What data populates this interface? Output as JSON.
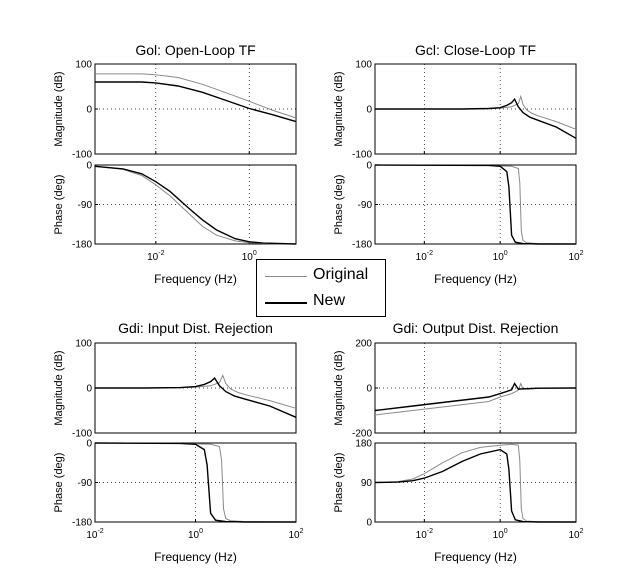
{
  "colors": {
    "original": "#8a8a8a",
    "new": "#000000",
    "axes": "#000000",
    "grid": "#000000",
    "background": "#ffffff"
  },
  "legend": {
    "placement": "center",
    "items": [
      {
        "label": "Original",
        "color": "#8a8a8a"
      },
      {
        "label": "New",
        "color": "#000000"
      }
    ]
  },
  "chart_data": [
    {
      "type": "line",
      "title": "Gol: Open-Loop TF",
      "xlabel": "Frequency  (Hz)",
      "x_scale": "log",
      "xlim": [
        0.0005,
        10
      ],
      "xticks": [
        {
          "value": 0.01,
          "base": "10",
          "exp": "-2"
        },
        {
          "value": 1,
          "base": "10",
          "exp": "0"
        }
      ],
      "magnitude": {
        "ylabel": "Magnitude (dB)",
        "ylim": [
          -100,
          100
        ],
        "yticks": [
          "100",
          "0",
          "-100"
        ],
        "ytick_values": [
          100,
          0,
          -100
        ],
        "series": [
          {
            "name": "Original",
            "x": [
              0.0005,
              0.005,
              0.01,
              0.03,
              0.1,
              0.3,
              1,
              3,
              10
            ],
            "y": [
              78,
              78,
              76,
              70,
              55,
              37,
              17,
              -2,
              -20
            ]
          },
          {
            "name": "New",
            "x": [
              0.0005,
              0.005,
              0.01,
              0.03,
              0.1,
              0.3,
              1,
              3,
              10
            ],
            "y": [
              60,
              60,
              58,
              51,
              37,
              20,
              1,
              -12,
              -28
            ]
          }
        ]
      },
      "phase": {
        "ylabel": "Phase (deg)",
        "ylim": [
          -180,
          0
        ],
        "yticks": [
          "0",
          "-90",
          "-180"
        ],
        "ytick_values": [
          0,
          -90,
          -180
        ],
        "series": [
          {
            "name": "Original",
            "x": [
              0.0005,
              0.002,
              0.005,
              0.01,
              0.02,
              0.05,
              0.1,
              0.2,
              0.5,
              1,
              2,
              10
            ],
            "y": [
              -3,
              -10,
              -24,
              -45,
              -70,
              -110,
              -140,
              -160,
              -173,
              -177,
              -179,
              -180
            ]
          },
          {
            "name": "New",
            "x": [
              0.0005,
              0.002,
              0.005,
              0.01,
              0.02,
              0.05,
              0.1,
              0.2,
              0.5,
              1,
              2,
              10
            ],
            "y": [
              -3,
              -9,
              -20,
              -38,
              -60,
              -98,
              -125,
              -148,
              -168,
              -175,
              -178,
              -180
            ]
          }
        ]
      }
    },
    {
      "type": "line",
      "title": "Gcl: Close-Loop TF",
      "xlabel": "Frequency  (Hz)",
      "x_scale": "log",
      "xlim": [
        0.0005,
        100
      ],
      "xticks": [
        {
          "value": 0.01,
          "base": "10",
          "exp": "-2"
        },
        {
          "value": 1,
          "base": "10",
          "exp": "0"
        },
        {
          "value": 100,
          "base": "10",
          "exp": "2"
        }
      ],
      "magnitude": {
        "ylabel": "Magnitude (dB)",
        "ylim": [
          -100,
          100
        ],
        "yticks": [
          "100",
          "0",
          "-100"
        ],
        "ytick_values": [
          100,
          0,
          -100
        ],
        "series": [
          {
            "name": "Original",
            "x": [
              0.0005,
              0.1,
              0.5,
              1,
              2,
              3,
              3.5,
              4,
              5,
              7,
              10,
              30,
              100
            ],
            "y": [
              0,
              0,
              1,
              2,
              5,
              12,
              28,
              10,
              -2,
              -10,
              -15,
              -28,
              -45
            ]
          },
          {
            "name": "New",
            "x": [
              0.0005,
              0.1,
              0.5,
              1,
              1.5,
              2,
              2.4,
              3,
              4,
              6,
              10,
              30,
              100
            ],
            "y": [
              0,
              0,
              1,
              3,
              8,
              14,
              22,
              5,
              -8,
              -18,
              -25,
              -40,
              -65
            ]
          }
        ]
      },
      "phase": {
        "ylabel": "Phase (deg)",
        "ylim": [
          -180,
          0
        ],
        "yticks": [
          "0",
          "-90",
          "-180"
        ],
        "ytick_values": [
          0,
          -90,
          -180
        ],
        "series": [
          {
            "name": "Original",
            "x": [
              0.0005,
              0.5,
              2,
              3,
              3.3,
              3.6,
              4,
              5,
              10,
              100
            ],
            "y": [
              0,
              -1,
              -3,
              -8,
              -40,
              -150,
              -172,
              -177,
              -179,
              -180
            ]
          },
          {
            "name": "New",
            "x": [
              0.0005,
              0.5,
              1,
              1.5,
              1.7,
              2,
              2.5,
              4,
              10,
              100
            ],
            "y": [
              0,
              -1,
              -3,
              -15,
              -50,
              -160,
              -176,
              -179,
              -180,
              -180
            ]
          }
        ]
      }
    },
    {
      "type": "line",
      "title": "Gdi: Input Dist. Rejection",
      "xlabel": "Frequency  (Hz)",
      "x_scale": "log",
      "xlim": [
        0.01,
        100
      ],
      "xticks": [
        {
          "value": 0.01,
          "base": "10",
          "exp": "-2"
        },
        {
          "value": 1,
          "base": "10",
          "exp": "0"
        },
        {
          "value": 100,
          "base": "10",
          "exp": "2"
        }
      ],
      "magnitude": {
        "ylabel": "Magnitude (dB)",
        "ylim": [
          -100,
          100
        ],
        "yticks": [
          "100",
          "0",
          "-100"
        ],
        "ytick_values": [
          100,
          0,
          -100
        ],
        "series": [
          {
            "name": "Original",
            "x": [
              0.01,
              0.1,
              0.5,
              1,
              2,
              3,
              3.5,
              4,
              5,
              7,
              10,
              30,
              100
            ],
            "y": [
              0,
              0,
              1,
              2,
              5,
              12,
              28,
              10,
              -2,
              -10,
              -15,
              -28,
              -45
            ]
          },
          {
            "name": "New",
            "x": [
              0.01,
              0.1,
              0.5,
              1,
              1.5,
              2,
              2.4,
              3,
              4,
              6,
              10,
              30,
              100
            ],
            "y": [
              0,
              0,
              1,
              3,
              8,
              14,
              22,
              5,
              -8,
              -18,
              -25,
              -40,
              -65
            ]
          }
        ]
      },
      "phase": {
        "ylabel": "Phase (deg)",
        "ylim": [
          -180,
          0
        ],
        "yticks": [
          "0",
          "-90",
          "-180"
        ],
        "ytick_values": [
          0,
          -90,
          -180
        ],
        "series": [
          {
            "name": "Original",
            "x": [
              0.01,
              0.5,
              2,
              3,
              3.3,
              3.6,
              4,
              5,
              10,
              100
            ],
            "y": [
              0,
              -1,
              -3,
              -8,
              -40,
              -150,
              -172,
              -177,
              -179,
              -180
            ]
          },
          {
            "name": "New",
            "x": [
              0.01,
              0.5,
              1,
              1.5,
              1.7,
              2,
              2.5,
              4,
              10,
              100
            ],
            "y": [
              0,
              -1,
              -3,
              -15,
              -50,
              -160,
              -176,
              -179,
              -180,
              -180
            ]
          }
        ]
      }
    },
    {
      "type": "line",
      "title": "Gdi: Output Dist. Rejection",
      "xlabel": "Frequency  (Hz)",
      "x_scale": "log",
      "xlim": [
        0.0005,
        100
      ],
      "xticks": [
        {
          "value": 0.01,
          "base": "10",
          "exp": "-2"
        },
        {
          "value": 1,
          "base": "10",
          "exp": "0"
        },
        {
          "value": 100,
          "base": "10",
          "exp": "2"
        }
      ],
      "magnitude": {
        "ylabel": "Magnitude (dB)",
        "ylim": [
          -200,
          200
        ],
        "yticks": [
          "200",
          "0",
          "-200"
        ],
        "ytick_values": [
          200,
          0,
          -200
        ],
        "series": [
          {
            "name": "Original",
            "x": [
              0.0005,
              0.005,
              0.05,
              0.5,
              1,
              2,
              3,
              3.5,
              4,
              6,
              10,
              100
            ],
            "y": [
              -120,
              -100,
              -80,
              -60,
              -40,
              -25,
              -10,
              20,
              -5,
              -5,
              -2,
              0
            ]
          },
          {
            "name": "New",
            "x": [
              0.0005,
              0.005,
              0.05,
              0.5,
              1,
              1.5,
              2,
              2.4,
              3,
              5,
              10,
              100
            ],
            "y": [
              -100,
              -80,
              -60,
              -40,
              -25,
              -15,
              -8,
              20,
              -5,
              -3,
              -1,
              0
            ]
          }
        ]
      },
      "phase": {
        "ylabel": "Phase (deg)",
        "ylim": [
          0,
          180
        ],
        "yticks": [
          "180",
          "90",
          "0"
        ],
        "ytick_values": [
          180,
          90,
          0
        ],
        "series": [
          {
            "name": "Original",
            "x": [
              0.0005,
              0.002,
              0.005,
              0.01,
              0.03,
              0.1,
              0.3,
              1,
              2,
              3,
              3.3,
              3.6,
              4,
              5,
              10,
              100
            ],
            "y": [
              90,
              92,
              98,
              110,
              135,
              158,
              170,
              175,
              177,
              175,
              140,
              30,
              8,
              2,
              1,
              0
            ]
          },
          {
            "name": "New",
            "x": [
              0.0005,
              0.002,
              0.005,
              0.01,
              0.03,
              0.1,
              0.3,
              1,
              1.5,
              1.7,
              2,
              2.5,
              4,
              10,
              100
            ],
            "y": [
              90,
              91,
              94,
              100,
              115,
              138,
              155,
              165,
              155,
              120,
              25,
              5,
              1,
              0,
              0
            ]
          }
        ]
      }
    }
  ]
}
